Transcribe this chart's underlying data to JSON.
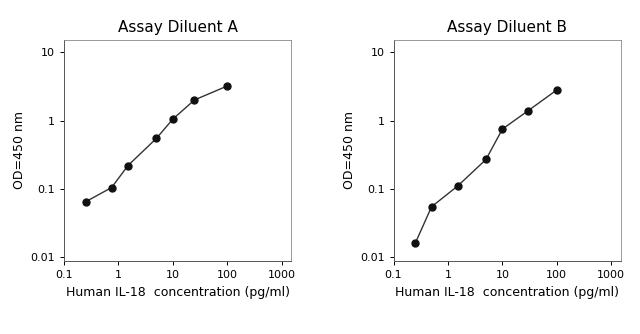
{
  "title_A": "Assay Diluent A",
  "title_B": "Assay Diluent B",
  "xlabel": "Human IL-18  concentration (pg/ml)",
  "ylabel": "OD=450 nm",
  "panel_A_x": [
    0.25,
    0.75,
    1.5,
    5.0,
    10.0,
    25.0,
    100.0
  ],
  "panel_A_y": [
    0.065,
    0.105,
    0.22,
    0.55,
    1.05,
    2.0,
    3.2
  ],
  "panel_B_x": [
    0.25,
    0.5,
    1.5,
    5.0,
    10.0,
    30.0,
    100.0
  ],
  "panel_B_y": [
    0.016,
    0.055,
    0.11,
    0.27,
    0.75,
    1.4,
    2.8
  ],
  "xlim": [
    0.15,
    1500
  ],
  "ylim": [
    0.009,
    15
  ],
  "line_color": "#333333",
  "marker_color": "#111111",
  "marker_size": 5,
  "title_fontsize": 11,
  "label_fontsize": 9,
  "tick_fontsize": 8,
  "bg_color": "#ffffff"
}
